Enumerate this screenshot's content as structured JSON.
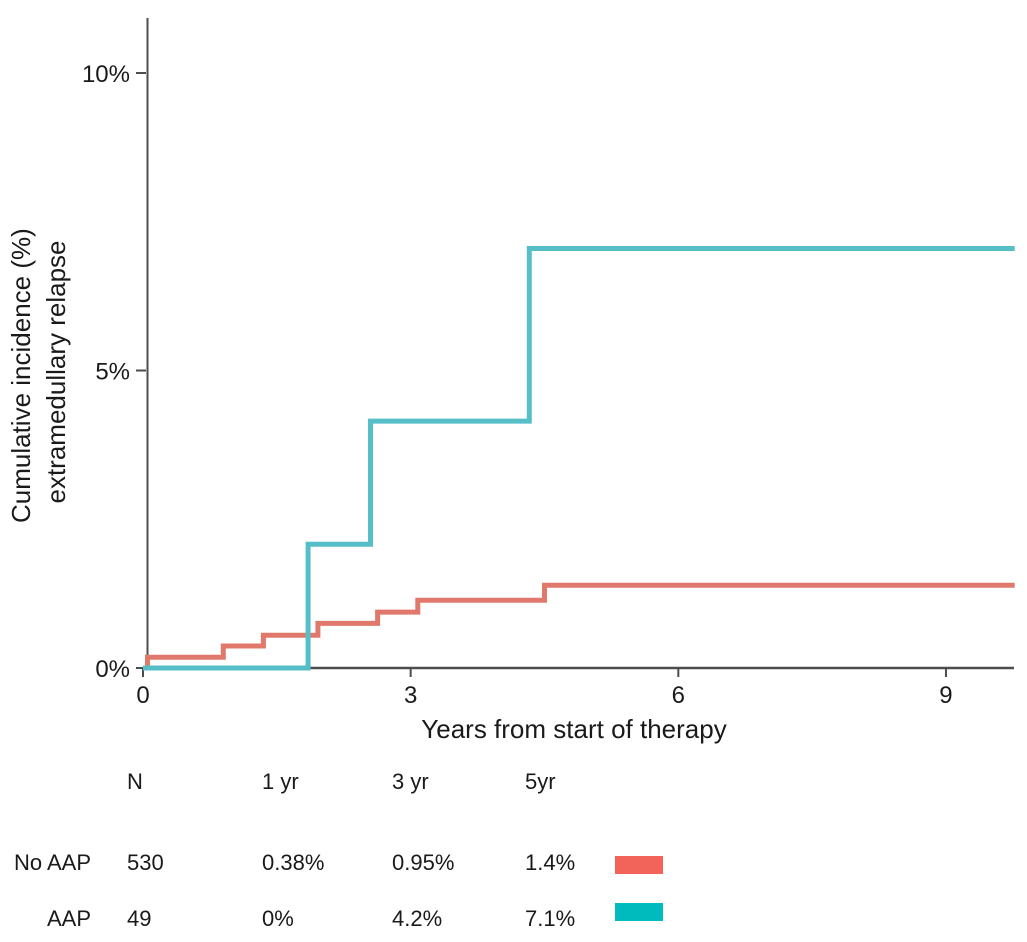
{
  "chart_data": {
    "type": "line",
    "subtype": "step",
    "title": "",
    "xlabel": "Years from start of therapy",
    "ylabel_line1": "Cumulative incidence (%)",
    "ylabel_line2": "extramedullary relapse",
    "xlim": [
      0,
      9.8
    ],
    "ylim": [
      0,
      10.9
    ],
    "grid": false,
    "legend_position": "table-below-chart",
    "xticks": [
      {
        "value": 0,
        "label": "0"
      },
      {
        "value": 3,
        "label": "3"
      },
      {
        "value": 6,
        "label": "6"
      },
      {
        "value": 9,
        "label": "9"
      }
    ],
    "yticks": [
      {
        "value": 0,
        "label": "0%"
      },
      {
        "value": 5,
        "label": "5%"
      },
      {
        "value": 10,
        "label": "10%"
      }
    ],
    "series": [
      {
        "name": "No AAP",
        "color": "#E0796C",
        "points": [
          [
            0,
            0
          ],
          [
            0.05,
            0.18
          ],
          [
            0.9,
            0.37
          ],
          [
            1.35,
            0.55
          ],
          [
            1.96,
            0.75
          ],
          [
            2.63,
            0.94
          ],
          [
            3.08,
            1.14
          ],
          [
            4.5,
            1.39
          ],
          [
            9.77,
            1.39
          ]
        ]
      },
      {
        "name": "AAP",
        "color": "#56BEC6",
        "points": [
          [
            0,
            0
          ],
          [
            1.85,
            2.08
          ],
          [
            2.55,
            4.15
          ],
          [
            4.33,
            7.05
          ],
          [
            9.77,
            7.05
          ]
        ]
      }
    ]
  },
  "table": {
    "headers": [
      "N",
      "1 yr",
      "3 yr",
      "5yr"
    ],
    "rows": [
      {
        "label": "No AAP",
        "n": "530",
        "yr1": "0.38%",
        "yr3": "0.95%",
        "yr5": "1.4%",
        "swatch": "#F26459"
      },
      {
        "label": "AAP",
        "n": "49",
        "yr1": "0%",
        "yr3": "4.2%",
        "yr5": "7.1%",
        "swatch": "#00BBBE"
      }
    ]
  }
}
